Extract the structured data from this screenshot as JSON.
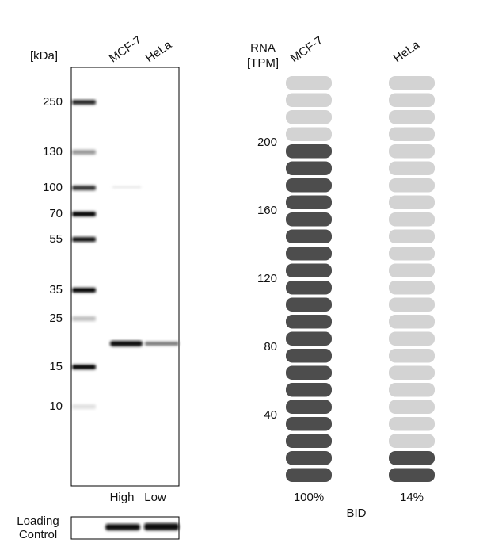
{
  "blot": {
    "unit": "[kDa]",
    "lanes": [
      "MCF-7",
      "HeLa"
    ],
    "markers": [
      250,
      130,
      100,
      70,
      55,
      35,
      25,
      15,
      10
    ],
    "levels": [
      "High",
      "Low"
    ],
    "loading_control": [
      "Loading",
      "Control"
    ]
  },
  "chart_data": {
    "type": "pill",
    "title": "BID",
    "ylabel": [
      "RNA",
      "[TPM]"
    ],
    "categories": [
      "MCF-7",
      "HeLa"
    ],
    "values": [
      200,
      28
    ],
    "value_labels": [
      "100%",
      "14%"
    ],
    "ylim": [
      0,
      240
    ],
    "yticks": [
      40,
      80,
      120,
      160,
      200
    ],
    "color": "#4d4d4d",
    "empty_color": "#d3d3d3"
  }
}
